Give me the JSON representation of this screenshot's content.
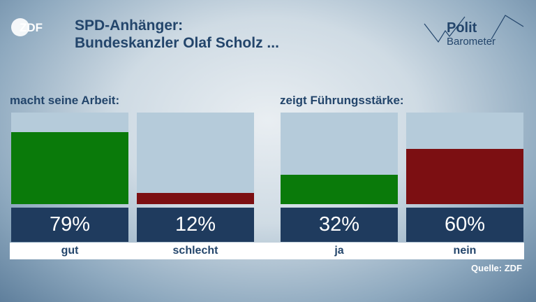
{
  "header": {
    "title_line1": "SPD-Anhänger:",
    "title_line2": "Bundeskanzler Olaf Scholz ...",
    "logo_text": "ZDF",
    "brand_top": "Polit",
    "brand_bottom": "Barometer"
  },
  "colors": {
    "positive": "#0a7a0a",
    "negative": "#7c0f12",
    "track": "#b5cbda",
    "box": "#1f3b5e"
  },
  "chart_data": [
    {
      "type": "bar",
      "title": "macht seine Arbeit:",
      "categories": [
        "gut",
        "schlecht"
      ],
      "values": [
        79,
        12
      ],
      "value_labels": [
        "79%",
        "12%"
      ],
      "ylim": [
        0,
        100
      ]
    },
    {
      "type": "bar",
      "title": "zeigt Führungsstärke:",
      "categories": [
        "ja",
        "nein"
      ],
      "values": [
        32,
        60
      ],
      "value_labels": [
        "32%",
        "60%"
      ],
      "ylim": [
        0,
        100
      ]
    }
  ],
  "footer": {
    "source": "Quelle: ZDF"
  }
}
